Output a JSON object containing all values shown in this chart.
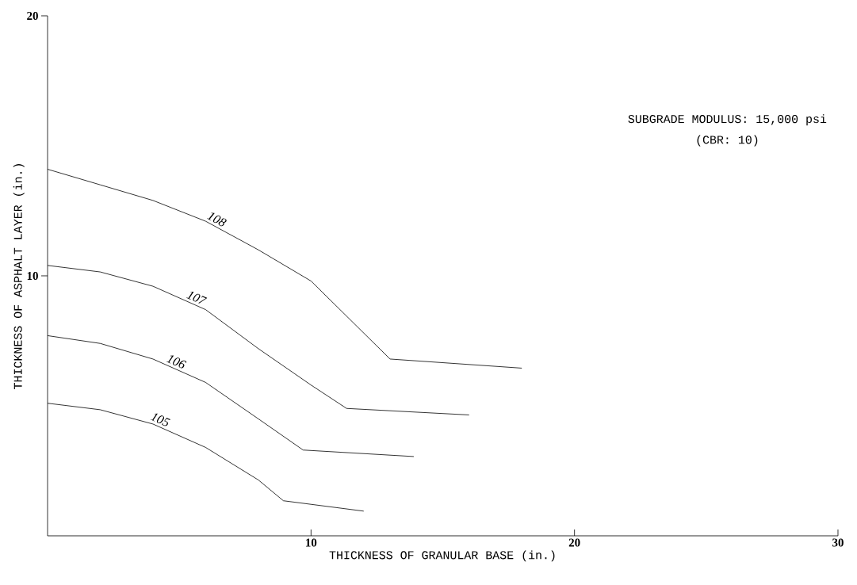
{
  "chart_data": {
    "type": "line",
    "xlabel": "THICKNESS OF GRANULAR BASE (in.)",
    "ylabel": "THICKNESS OF ASPHALT LAYER (in.)",
    "annotations": [
      "SUBGRADE MODULUS:  15,000 psi",
      "(CBR:  10)"
    ],
    "xlim": [
      0,
      30
    ],
    "ylim": [
      0,
      20
    ],
    "xticks": [
      10,
      20,
      30
    ],
    "yticks": [
      10,
      20
    ],
    "grid": false,
    "marker": "none",
    "line_style": "solid",
    "series": [
      {
        "name": "108",
        "color": "#000000",
        "x": [
          0,
          2,
          4,
          6,
          8,
          10,
          13,
          18
        ],
        "values": [
          14.1,
          13.5,
          12.9,
          12.1,
          11.0,
          9.8,
          6.8,
          6.45
        ]
      },
      {
        "name": "107",
        "color": "#000000",
        "x": [
          0,
          2,
          4,
          6,
          8,
          10,
          11.35,
          16
        ],
        "values": [
          10.4,
          10.15,
          9.6,
          8.7,
          7.2,
          5.8,
          4.9,
          4.65
        ]
      },
      {
        "name": "106",
        "color": "#000000",
        "x": [
          0,
          2,
          4,
          6,
          8,
          9.7,
          13.9
        ],
        "values": [
          7.7,
          7.4,
          6.8,
          5.9,
          4.5,
          3.3,
          3.05
        ]
      },
      {
        "name": "105",
        "color": "#000000",
        "x": [
          0,
          2,
          4,
          6,
          8,
          8.95,
          12
        ],
        "values": [
          5.1,
          4.85,
          4.3,
          3.4,
          2.15,
          1.35,
          0.95
        ]
      }
    ]
  }
}
